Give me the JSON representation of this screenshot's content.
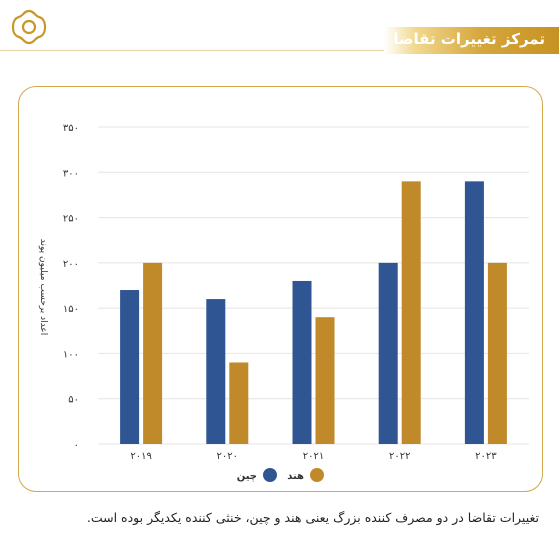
{
  "header": {
    "title": "تمرکز تغییرات تقاضا"
  },
  "caption": "تغییرات تقاضا در دو مصرف کننده بزرگ یعنی هند و چین، خنثی کننده یکدیگر بوده است.",
  "colors": {
    "china": "#2f5592",
    "india": "#c0892a",
    "gold": "#c9962a"
  },
  "icons": [
    "logo-icon"
  ],
  "chart_data": {
    "type": "bar",
    "categories": [
      "۲۰۱۹",
      "۲۰۲۰",
      "۲۰۲۱",
      "۲۰۲۲",
      "۲۰۲۳"
    ],
    "series": [
      {
        "name": "چین",
        "values": [
          170,
          160,
          180,
          200,
          290
        ]
      },
      {
        "name": "هند",
        "values": [
          200,
          90,
          140,
          290,
          200
        ]
      }
    ],
    "ylabel": "اعداد برحسب میلیون پوند",
    "xlabel": "",
    "ylim": [
      0,
      350
    ],
    "yticks": [
      0,
      50,
      100,
      150,
      200,
      250,
      300,
      350
    ],
    "ytick_labels": [
      "۰",
      "۵۰",
      "۱۰۰",
      "۱۵۰",
      "۲۰۰",
      "۲۵۰",
      "۳۰۰",
      "۳۵۰"
    ],
    "grid": true,
    "legend": "bottom-center"
  }
}
